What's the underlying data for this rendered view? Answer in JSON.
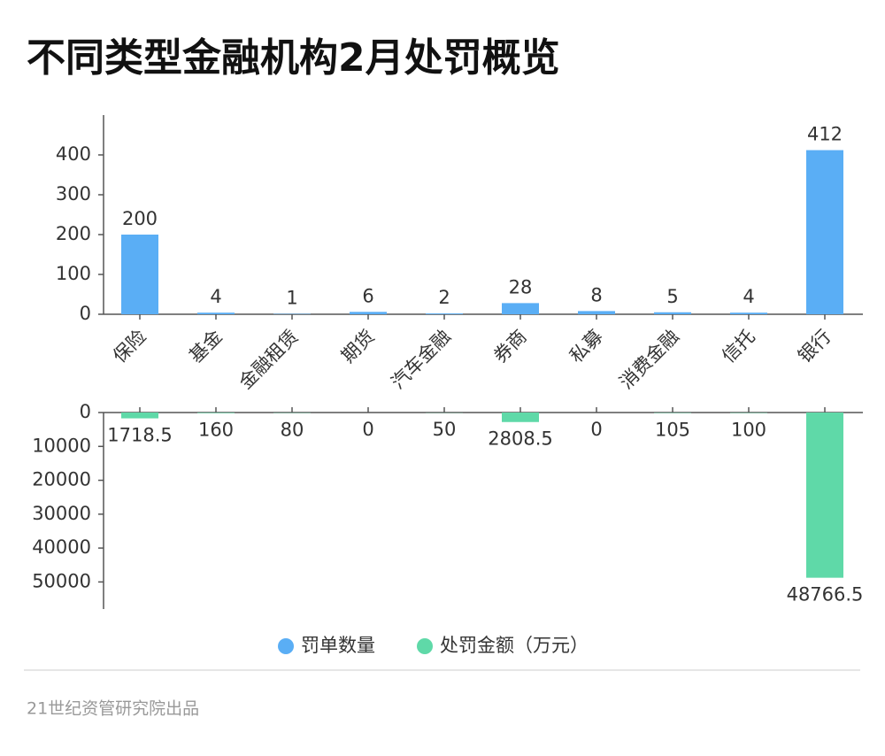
{
  "title": "不同类型金融机构2月处罚概览",
  "footer": "21世纪资管研究院出品",
  "chart_data": {
    "type": "bar",
    "categories": [
      "保险",
      "基金",
      "金融租赁",
      "期货",
      "汽车金融",
      "券商",
      "私募",
      "消费金融",
      "信托",
      "银行"
    ],
    "series": [
      {
        "name": "罚单数量",
        "color": "#5aaef5",
        "values": [
          200,
          4,
          1,
          6,
          2,
          28,
          8,
          5,
          4,
          412
        ]
      },
      {
        "name": "处罚金额（万元）",
        "color": "#5fd9a8",
        "axis": "y2",
        "values": [
          1718.5,
          160,
          80,
          0,
          50,
          2808.5,
          0,
          105,
          100,
          48766.5
        ]
      }
    ],
    "ylim": [
      0,
      500
    ],
    "yticks": [
      0,
      100,
      200,
      300,
      400
    ],
    "y2lim": [
      0,
      58000
    ],
    "y2ticks": [
      0,
      10000,
      20000,
      30000,
      40000,
      50000
    ],
    "y2_inverted": true,
    "legend": "bottom"
  }
}
